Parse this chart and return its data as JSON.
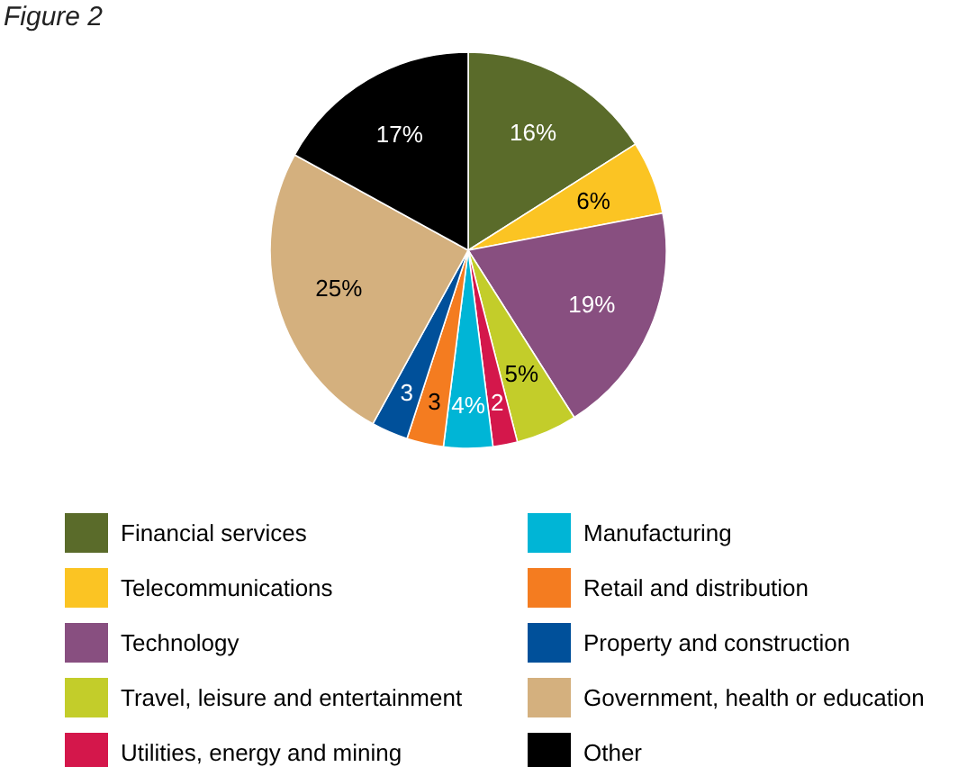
{
  "chart_data": {
    "type": "pie",
    "title": "Figure 2",
    "categories": [
      "Financial services",
      "Telecommunications",
      "Technology",
      "Travel, leisure and entertainment",
      "Utilities, energy and mining",
      "Manufacturing",
      "Retail and distribution",
      "Property and construction",
      "Government, health or education",
      "Other"
    ],
    "values": [
      16,
      6,
      19,
      5,
      2,
      4,
      3,
      3,
      25,
      17
    ],
    "value_labels": [
      "16%",
      "6%",
      "19%",
      "5%",
      "2",
      "4%",
      "3",
      "3",
      "25%",
      "17%"
    ],
    "colors": [
      "#5a6b2a",
      "#fbc423",
      "#884f80",
      "#c3cd2a",
      "#d4174b",
      "#00b5d6",
      "#f47c20",
      "#00509a",
      "#d4b07e",
      "#000000"
    ],
    "legend": "bottom"
  }
}
